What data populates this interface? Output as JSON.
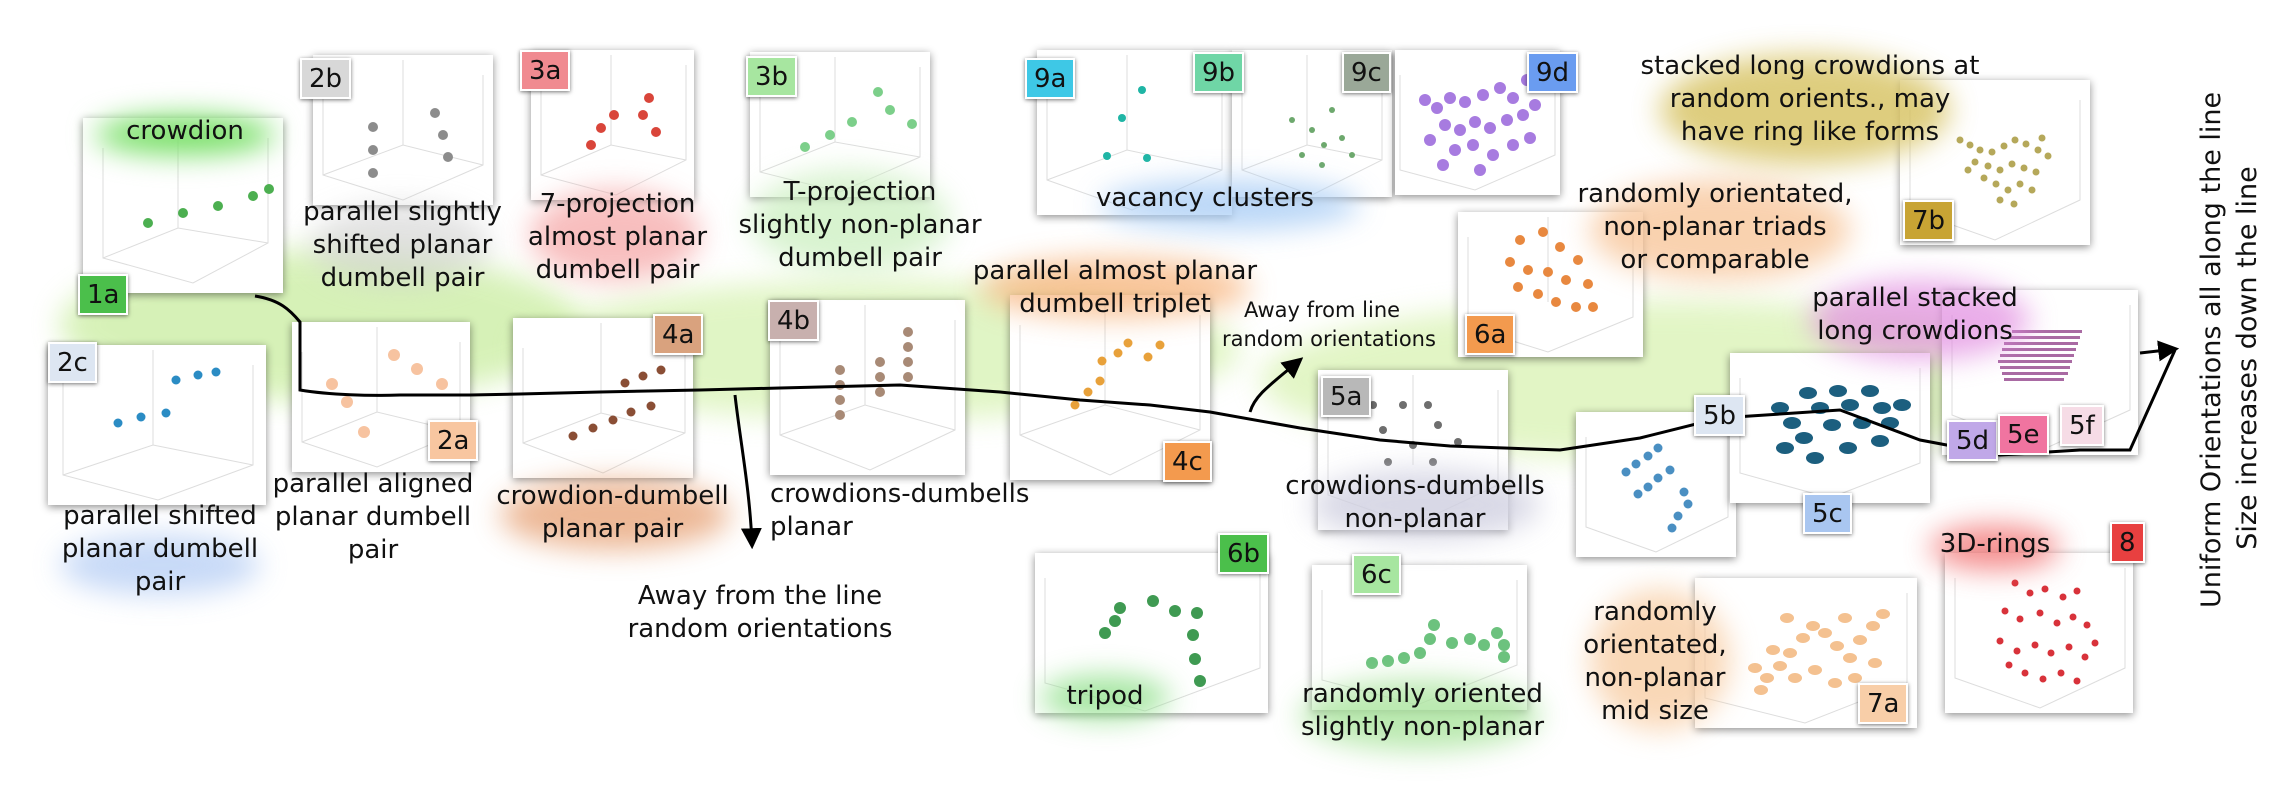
{
  "colors": {
    "crowdion": "#4caf50",
    "dumbell_gray": "#8c8c8c",
    "red": "#d9453a",
    "light_green": "#7ccf8a",
    "teal": "#1fb5a5",
    "violet": "#a77be0",
    "olive": "#b5a85a",
    "orange": "#e8883f",
    "brown": "#8a4e35",
    "tan": "#a88a76",
    "amber": "#e8a13a",
    "dark_gray": "#6e6e6e",
    "steel_blue": "#4a8fc2",
    "navy_teal": "#1c5f7f",
    "magenta": "#a05a9a",
    "green": "#3f9a52",
    "mint": "#6cc27e",
    "peach": "#f4c190",
    "crimson": "#d8323a",
    "sky": "#3d8fc9",
    "salmon": "#f7c3a0"
  },
  "panels": [
    {
      "id": "1a",
      "badge": "1a",
      "badge_color": "#4bbf4b",
      "label": "crowdion",
      "label_glow": "#7be06a",
      "dots": "#4caf50",
      "icon": "3d-scatter-plot"
    },
    {
      "id": "2b",
      "badge": "2b",
      "badge_color": "#d8d8d8",
      "label": "parallel slightly\nshifted planar\ndumbell pair",
      "label_glow": "#bdbdbd",
      "dots": "#8c8c8c"
    },
    {
      "id": "3a",
      "badge": "3a",
      "badge_color": "#f08a90",
      "label": "7-projection\nalmost planar\ndumbell pair",
      "label_glow": "#f5a3a3",
      "dots": "#d9453a"
    },
    {
      "id": "3b",
      "badge": "3b",
      "badge_color": "#a7e6a0",
      "label": "T-projection\nslightly non-planar\ndumbell pair",
      "label_glow": "#b8ecae",
      "dots": "#7ccf8a"
    },
    {
      "id": "9a",
      "badge": "9a",
      "badge_color": "#3ec8e6",
      "label": "",
      "dots": "#1fb5a5"
    },
    {
      "id": "9b",
      "badge": "9b",
      "badge_color": "#6fd6a6",
      "label": "",
      "dots": "#5cc27f"
    },
    {
      "id": "9c",
      "badge": "9c",
      "badge_color": "#9aa898",
      "label": "",
      "dots": "#6da86d"
    },
    {
      "id": "9d",
      "badge": "9d",
      "badge_color": "#6a9cf0",
      "label": "",
      "dots": "#a77be0"
    },
    {
      "id": "7b",
      "badge": "7b",
      "badge_color": "#c8a434",
      "label": "stacked long crowdions at\nrandom orients., may\nhave ring like forms",
      "label_glow": "#d6c15e",
      "dots": "#b5a85a"
    },
    {
      "id": "2c",
      "badge": "2c",
      "badge_color": "#dde6f2",
      "label": "parallel shifted\nplanar dumbell\npair",
      "label_glow": "#b9d0f5",
      "dots": "#2b8cc4"
    },
    {
      "id": "2a",
      "badge": "2a",
      "badge_color": "#f8c6a0",
      "label": "parallel aligned\nplanar dumbell\npair",
      "label_glow": "#fff",
      "dots": "#f7c3a0"
    },
    {
      "id": "4a",
      "badge": "4a",
      "badge_color": "#d9a27e",
      "label": "crowdion-dumbell\nplanar pair",
      "label_glow": "#e59a6a",
      "dots": "#8a4e35"
    },
    {
      "id": "4b",
      "badge": "4b",
      "badge_color": "#c8b0ae",
      "label": "crowdions-dumbells\nplanar",
      "label_glow": "#fff",
      "dots": "#a88a76"
    },
    {
      "id": "4c",
      "badge": "4c",
      "badge_color": "#f39a4e",
      "label": "parallel almost planar\ndumbell triplet",
      "label_glow": "#f7ae72",
      "dots": "#e8a13a"
    },
    {
      "id": "6a",
      "badge": "6a",
      "badge_color": "#f39a4e",
      "label": "randomly orientated,\nnon-planar triads\nor comparable",
      "label_glow": "#f7bf8e",
      "dots": "#e8883f"
    },
    {
      "id": "5a",
      "badge": "5a",
      "badge_color": "#b8b8b8",
      "label": "crowdions-dumbells\nnon-planar",
      "label_glow": "#cfcfe0",
      "dots": "#6e6e6e"
    },
    {
      "id": "5b",
      "badge": "5b",
      "badge_color": "#dde6f2",
      "label": "",
      "dots": "#4a8fc2"
    },
    {
      "id": "5c",
      "badge": "5c",
      "badge_color": "#a9c6f0",
      "label": "",
      "dots": "#1c5f7f"
    },
    {
      "id": "5def",
      "badges": [
        "5d",
        "5e",
        "5f"
      ],
      "badge_colors": [
        "#c0a8e8",
        "#f074a0",
        "#f6dce6"
      ],
      "label": "parallel stacked\nlong crowdions",
      "label_glow": "#e18be0",
      "dots": "#a05a9a"
    },
    {
      "id": "6b",
      "badge": "6b",
      "badge_color": "#4bbf4b",
      "label": "tripod",
      "label_glow": "#8fe08a",
      "dots": "#3f9a52"
    },
    {
      "id": "6c",
      "badge": "6c",
      "badge_color": "#a7e6a0",
      "label": "randomly oriented\nslightly non-planar",
      "label_glow": "#a9e49c",
      "dots": "#6cc27e"
    },
    {
      "id": "7a",
      "badge": "7a",
      "badge_color": "#f8cea8",
      "label": "randomly\norientated,\nnon-planar\nmid size",
      "label_glow": "#f7c89a",
      "dots": "#f4c190"
    },
    {
      "id": "8",
      "badge": "8",
      "badge_color": "#e84040",
      "label": "3D-rings",
      "label_glow": "#f06060",
      "dots": "#d8323a"
    }
  ],
  "shared_labels": {
    "vacancy_clusters": "vacancy clusters",
    "away_short": "Away from line\nrandom orientations",
    "away_long": "Away from the line\nrandom orientations",
    "right_caption": "Uniform Orientations all along the line\nSize increases down the line"
  }
}
